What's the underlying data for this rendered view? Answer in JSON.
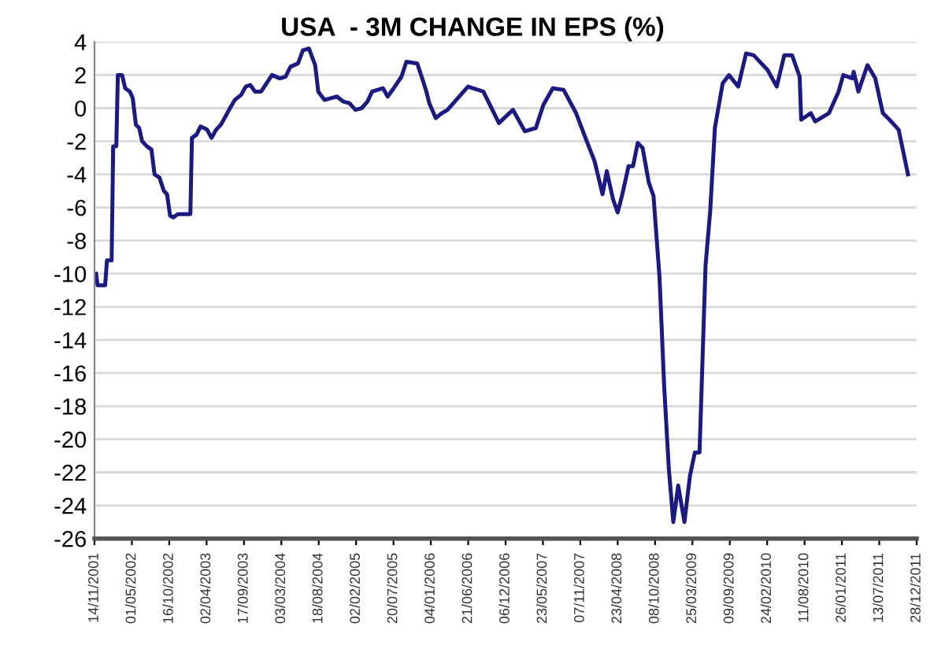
{
  "chart_data": {
    "type": "line",
    "title": "USA  - 3M CHANGE IN EPS (%)",
    "x": [
      "2001-11-21",
      "2001-11-28",
      "2002-01-01",
      "2002-01-09",
      "2002-01-30",
      "2002-02-06",
      "2002-02-20",
      "2002-02-27",
      "2002-03-18",
      "2002-04-01",
      "2002-04-22",
      "2002-05-05",
      "2002-05-19",
      "2002-06-03",
      "2002-06-16",
      "2002-07-07",
      "2002-07-28",
      "2002-08-11",
      "2002-09-02",
      "2002-09-22",
      "2002-10-06",
      "2002-10-20",
      "2002-11-03",
      "2002-11-24",
      "2003-01-19",
      "2003-01-26",
      "2003-02-16",
      "2003-03-06",
      "2003-04-04",
      "2003-04-24",
      "2003-05-15",
      "2003-06-05",
      "2003-06-26",
      "2003-07-16",
      "2003-08-07",
      "2003-09-04",
      "2003-09-25",
      "2003-10-15",
      "2003-11-06",
      "2003-12-03",
      "2004-01-21",
      "2004-02-25",
      "2004-03-22",
      "2004-04-13",
      "2004-05-17",
      "2004-06-08",
      "2004-07-05",
      "2004-08-02",
      "2004-08-16",
      "2004-09-13",
      "2004-10-11",
      "2004-11-08",
      "2004-12-06",
      "2005-01-03",
      "2005-01-30",
      "2005-02-27",
      "2005-03-25",
      "2005-04-15",
      "2005-06-03",
      "2005-06-24",
      "2005-07-21",
      "2005-08-25",
      "2005-09-16",
      "2005-11-04",
      "2005-12-01",
      "2005-12-15",
      "2005-12-28",
      "2006-01-26",
      "2006-02-23",
      "2006-03-20",
      "2006-06-20",
      "2006-08-28",
      "2006-11-06",
      "2007-01-08",
      "2007-03-03",
      "2007-04-21",
      "2007-05-25",
      "2007-07-06",
      "2007-08-24",
      "2007-10-19",
      "2007-12-06",
      "2008-01-10",
      "2008-02-15",
      "2008-03-05",
      "2008-04-02",
      "2008-04-23",
      "2008-05-14",
      "2008-06-11",
      "2008-07-01",
      "2008-07-22",
      "2008-08-13",
      "2008-09-10",
      "2008-10-01",
      "2008-10-28",
      "2008-11-18",
      "2008-12-09",
      "2008-12-29",
      "2009-01-20",
      "2009-02-17",
      "2009-03-14",
      "2009-04-05",
      "2009-04-26",
      "2009-05-23",
      "2009-06-13",
      "2009-07-04",
      "2009-08-08",
      "2009-09-05",
      "2009-10-17",
      "2009-11-21",
      "2009-12-25",
      "2010-02-26",
      "2010-04-08",
      "2010-05-12",
      "2010-06-16",
      "2010-07-20",
      "2010-07-27",
      "2010-09-08",
      "2010-09-28",
      "2010-11-29",
      "2011-01-11",
      "2011-02-01",
      "2011-03-13",
      "2011-03-20",
      "2011-04-10",
      "2011-05-21",
      "2011-06-25",
      "2011-07-29",
      "2011-09-04",
      "2011-10-08",
      "2011-11-19"
    ],
    "series": [
      {
        "color": "#1a1a80",
        "values": [
          -10,
          -10.7,
          -10.7,
          -9.2,
          -9.2,
          -2.3,
          -2.3,
          2.0,
          2.0,
          1.2,
          1.0,
          0.6,
          -1.0,
          -1.2,
          -2.0,
          -2.3,
          -2.5,
          -4.0,
          -4.2,
          -5.0,
          -5.2,
          -6.5,
          -6.6,
          -6.4,
          -6.4,
          -1.8,
          -1.6,
          -1.1,
          -1.3,
          -1.8,
          -1.3,
          -1.0,
          -0.5,
          0.0,
          0.5,
          0.8,
          1.3,
          1.4,
          1.0,
          1.0,
          2.0,
          1.8,
          1.9,
          2.5,
          2.7,
          3.5,
          3.6,
          2.6,
          1.0,
          0.5,
          0.6,
          0.7,
          0.4,
          0.3,
          -0.1,
          0.0,
          0.4,
          1.0,
          1.2,
          0.7,
          1.2,
          1.9,
          2.8,
          2.7,
          1.6,
          1.0,
          0.3,
          -0.6,
          -0.3,
          -0.1,
          1.3,
          1.0,
          -0.9,
          -0.1,
          -1.4,
          -1.2,
          0.2,
          1.2,
          1.1,
          -0.3,
          -2.0,
          -3.2,
          -5.2,
          -3.8,
          -5.5,
          -6.3,
          -5.2,
          -3.5,
          -3.5,
          -2.1,
          -2.4,
          -4.5,
          -5.3,
          -10.2,
          -16.8,
          -21.8,
          -25.0,
          -22.8,
          -25.0,
          -22.2,
          -20.8,
          -20.8,
          -9.5,
          -6.2,
          -1.2,
          1.5,
          2.0,
          1.3,
          3.3,
          3.2,
          2.3,
          1.3,
          3.2,
          3.2,
          1.9,
          -0.7,
          -0.3,
          -0.8,
          -0.3,
          1.0,
          2.0,
          1.8,
          2.2,
          1.0,
          2.6,
          1.8,
          -0.3,
          -0.8,
          -1.3,
          -4.0
        ]
      }
    ],
    "xlim": [
      "2001-11-14",
      "2011-12-28"
    ],
    "xticks": [
      {
        "value": "2001-11-14",
        "label": "14/11/2001"
      },
      {
        "value": "2002-05-01",
        "label": "01/05/2002"
      },
      {
        "value": "2002-10-16",
        "label": "16/10/2002"
      },
      {
        "value": "2003-04-02",
        "label": "02/04/2003"
      },
      {
        "value": "2003-09-17",
        "label": "17/09/2003"
      },
      {
        "value": "2004-03-03",
        "label": "03/03/2004"
      },
      {
        "value": "2004-08-18",
        "label": "18/08/2004"
      },
      {
        "value": "2005-02-02",
        "label": "02/02/2005"
      },
      {
        "value": "2005-07-20",
        "label": "20/07/2005"
      },
      {
        "value": "2006-01-04",
        "label": "04/01/2006"
      },
      {
        "value": "2006-06-21",
        "label": "21/06/2006"
      },
      {
        "value": "2006-12-06",
        "label": "06/12/2006"
      },
      {
        "value": "2007-05-23",
        "label": "23/05/2007"
      },
      {
        "value": "2007-11-07",
        "label": "07/11/2007"
      },
      {
        "value": "2008-04-23",
        "label": "23/04/2008"
      },
      {
        "value": "2008-10-08",
        "label": "08/10/2008"
      },
      {
        "value": "2009-03-25",
        "label": "25/03/2009"
      },
      {
        "value": "2009-09-09",
        "label": "09/09/2009"
      },
      {
        "value": "2010-02-24",
        "label": "24/02/2010"
      },
      {
        "value": "2010-08-11",
        "label": "11/08/2010"
      },
      {
        "value": "2011-01-26",
        "label": "26/01/2011"
      },
      {
        "value": "2011-07-13",
        "label": "13/07/2011"
      },
      {
        "value": "2011-12-28",
        "label": "28/12/2011"
      }
    ],
    "ylim": [
      -26,
      4
    ],
    "yticks": [
      -26,
      -24,
      -22,
      -20,
      -18,
      -16,
      -14,
      -12,
      -10,
      -8,
      -6,
      -4,
      -2,
      0,
      2,
      4
    ],
    "grid": "y"
  }
}
